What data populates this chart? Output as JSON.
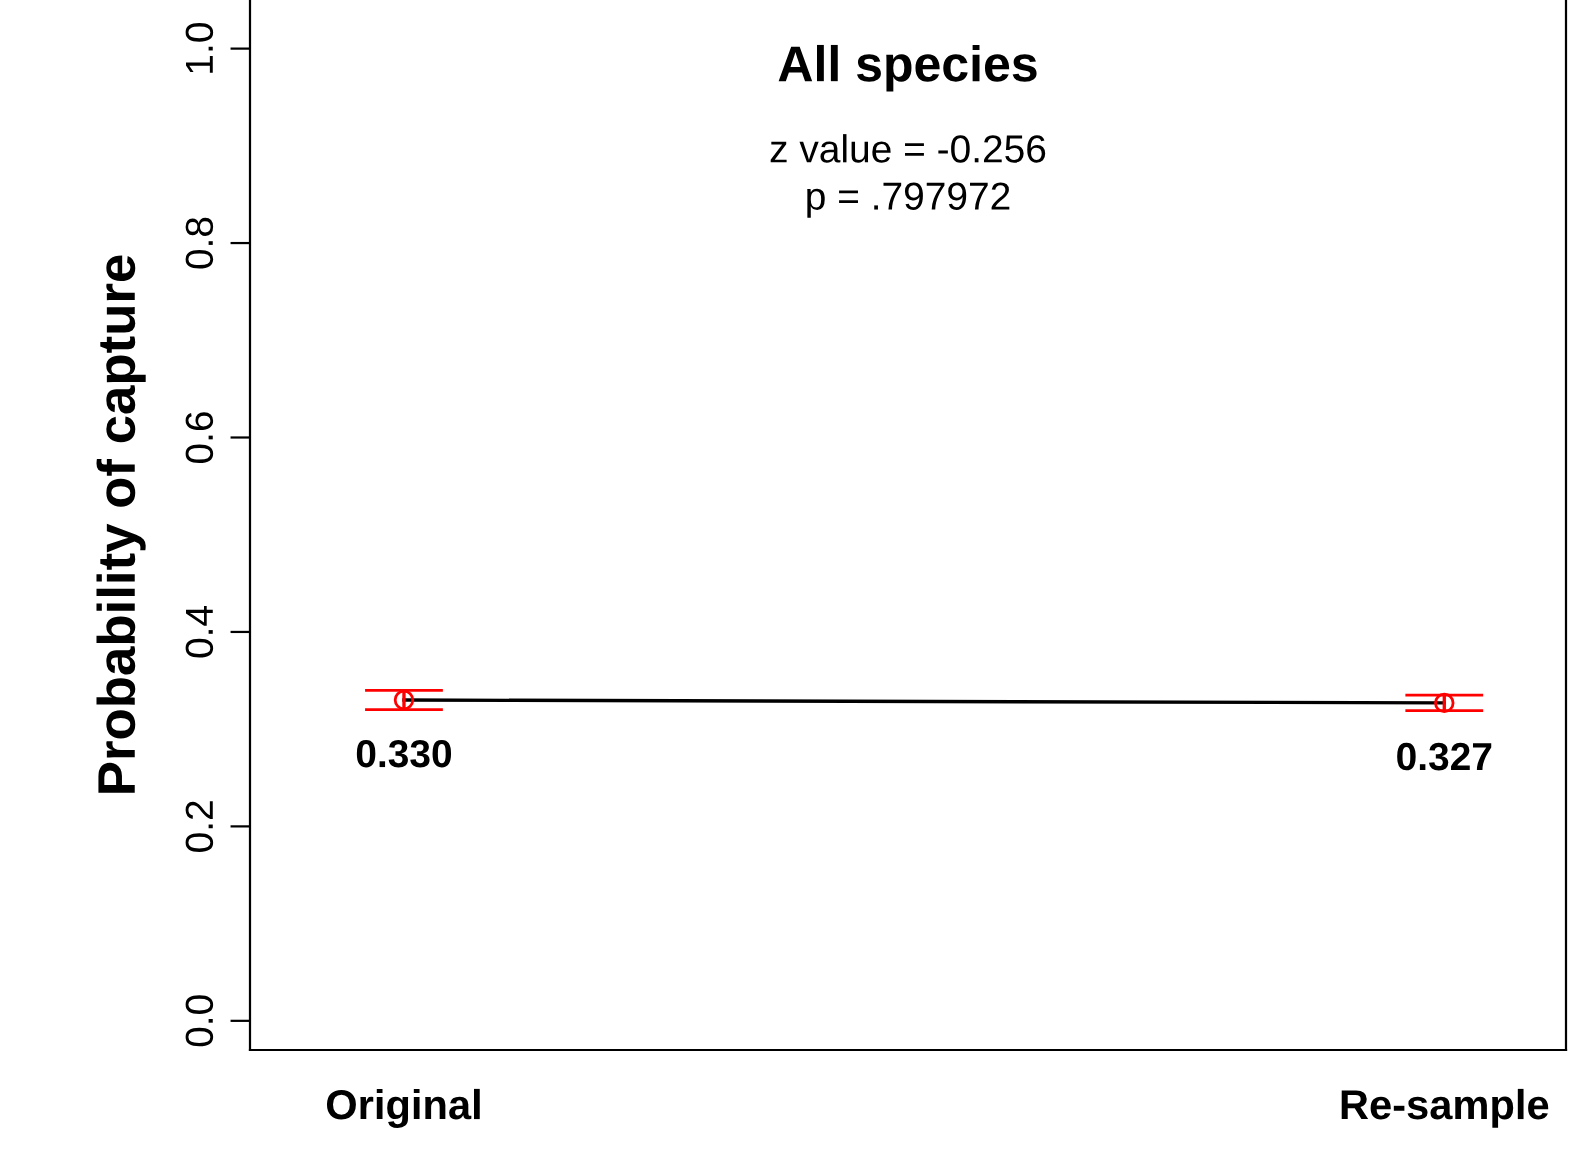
{
  "chart_data": {
    "type": "line",
    "title": "All species",
    "ylabel": "Probability of capture",
    "annotations": [
      "z value = -0.256",
      "p = .797972"
    ],
    "categories": [
      "Original",
      "Re-sample"
    ],
    "series": [
      {
        "color": "#000000",
        "values": [
          0.33,
          0.327
        ],
        "value_labels": [
          "0.330",
          "0.327"
        ],
        "marker": "none"
      },
      {
        "type": "scatter",
        "color": "#ff0000",
        "values": [
          0.33,
          0.327
        ],
        "errors": [
          0.01,
          0.008
        ],
        "marker": "circle"
      }
    ],
    "ylim": [
      -0.03,
      1.05
    ],
    "yticks": [
      {
        "value": 0,
        "label": "0.0"
      },
      0.2,
      0.4,
      0.6,
      0.8,
      {
        "value": 1,
        "label": "1.0"
      }
    ],
    "grid": false,
    "legend": false
  }
}
